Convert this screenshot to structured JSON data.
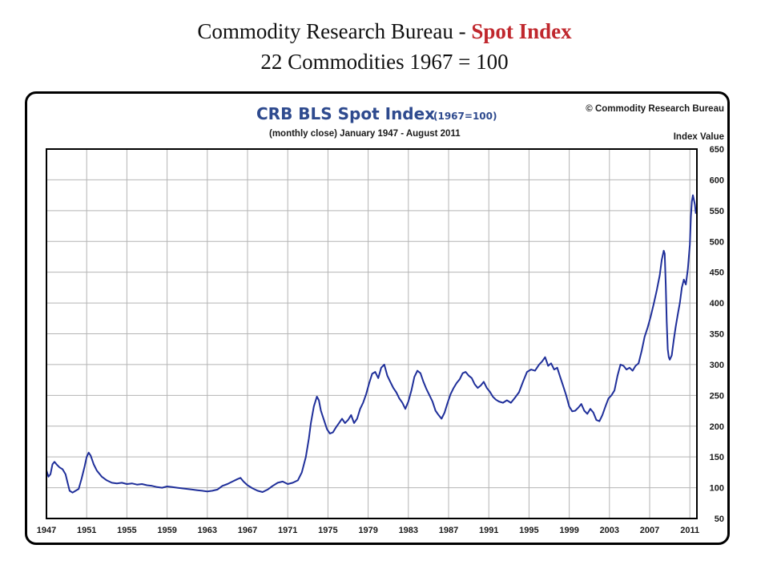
{
  "slide": {
    "title_prefix": "Commodity Research Bureau - ",
    "title_accent": "Spot Index",
    "subtitle": "22 Commodities 1967 = 100",
    "accent_color": "#c0272d"
  },
  "chart_data": {
    "type": "line",
    "title": "CRB BLS Spot Index",
    "title_suffix": "(1967=100)",
    "subtitle": "(monthly close) January 1947 - August 2011",
    "copyright": "© Commodity Research Bureau",
    "ylabel": "Index Value",
    "xlabel": "",
    "xlim": [
      1947,
      2011.7
    ],
    "ylim": [
      50,
      650
    ],
    "x_ticks": [
      "1947",
      "1951",
      "1955",
      "1959",
      "1963",
      "1967",
      "1971",
      "1975",
      "1979",
      "1983",
      "1987",
      "1991",
      "1995",
      "1999",
      "2003",
      "2007",
      "2011"
    ],
    "y_ticks": [
      650,
      600,
      550,
      500,
      450,
      400,
      350,
      300,
      250,
      200,
      150,
      100,
      50
    ],
    "grid": true,
    "line_color": "#1f2f9a",
    "title_color": "#2e4a8e",
    "series": [
      {
        "values": [
          [
            1947.0,
            128
          ],
          [
            1947.2,
            118
          ],
          [
            1947.4,
            122
          ],
          [
            1947.6,
            138
          ],
          [
            1947.8,
            142
          ],
          [
            1948.0,
            138
          ],
          [
            1948.3,
            133
          ],
          [
            1948.6,
            130
          ],
          [
            1948.9,
            122
          ],
          [
            1949.1,
            108
          ],
          [
            1949.3,
            95
          ],
          [
            1949.6,
            92
          ],
          [
            1949.9,
            95
          ],
          [
            1950.2,
            98
          ],
          [
            1950.5,
            115
          ],
          [
            1950.8,
            135
          ],
          [
            1951.0,
            150
          ],
          [
            1951.2,
            157
          ],
          [
            1951.4,
            152
          ],
          [
            1951.7,
            138
          ],
          [
            1952.0,
            128
          ],
          [
            1952.5,
            118
          ],
          [
            1953.0,
            112
          ],
          [
            1953.5,
            108
          ],
          [
            1954.0,
            107
          ],
          [
            1954.5,
            108
          ],
          [
            1955.0,
            106
          ],
          [
            1955.5,
            107
          ],
          [
            1956.0,
            105
          ],
          [
            1956.5,
            106
          ],
          [
            1957.0,
            104
          ],
          [
            1957.5,
            103
          ],
          [
            1958.0,
            101
          ],
          [
            1958.5,
            100
          ],
          [
            1959.0,
            102
          ],
          [
            1959.5,
            101
          ],
          [
            1960.0,
            100
          ],
          [
            1960.5,
            99
          ],
          [
            1961.0,
            98
          ],
          [
            1961.5,
            97
          ],
          [
            1962.0,
            96
          ],
          [
            1962.5,
            95
          ],
          [
            1963.0,
            94
          ],
          [
            1963.5,
            95
          ],
          [
            1964.0,
            97
          ],
          [
            1964.5,
            103
          ],
          [
            1965.0,
            106
          ],
          [
            1965.5,
            110
          ],
          [
            1966.0,
            114
          ],
          [
            1966.3,
            116
          ],
          [
            1966.6,
            110
          ],
          [
            1967.0,
            104
          ],
          [
            1967.5,
            99
          ],
          [
            1968.0,
            95
          ],
          [
            1968.5,
            93
          ],
          [
            1969.0,
            97
          ],
          [
            1969.5,
            103
          ],
          [
            1970.0,
            108
          ],
          [
            1970.5,
            110
          ],
          [
            1971.0,
            106
          ],
          [
            1971.5,
            108
          ],
          [
            1972.0,
            112
          ],
          [
            1972.4,
            125
          ],
          [
            1972.8,
            150
          ],
          [
            1973.1,
            180
          ],
          [
            1973.3,
            205
          ],
          [
            1973.6,
            232
          ],
          [
            1973.9,
            248
          ],
          [
            1974.1,
            242
          ],
          [
            1974.3,
            225
          ],
          [
            1974.6,
            210
          ],
          [
            1974.9,
            195
          ],
          [
            1975.2,
            188
          ],
          [
            1975.5,
            190
          ],
          [
            1975.8,
            198
          ],
          [
            1976.1,
            205
          ],
          [
            1976.4,
            212
          ],
          [
            1976.7,
            205
          ],
          [
            1977.0,
            210
          ],
          [
            1977.3,
            218
          ],
          [
            1977.6,
            205
          ],
          [
            1977.9,
            212
          ],
          [
            1978.2,
            228
          ],
          [
            1978.5,
            238
          ],
          [
            1978.8,
            252
          ],
          [
            1979.1,
            270
          ],
          [
            1979.4,
            285
          ],
          [
            1979.7,
            288
          ],
          [
            1980.0,
            278
          ],
          [
            1980.3,
            295
          ],
          [
            1980.6,
            300
          ],
          [
            1980.9,
            282
          ],
          [
            1981.2,
            272
          ],
          [
            1981.5,
            262
          ],
          [
            1981.8,
            255
          ],
          [
            1982.1,
            245
          ],
          [
            1982.4,
            238
          ],
          [
            1982.7,
            228
          ],
          [
            1983.0,
            240
          ],
          [
            1983.3,
            258
          ],
          [
            1983.6,
            280
          ],
          [
            1983.9,
            290
          ],
          [
            1984.2,
            286
          ],
          [
            1984.5,
            272
          ],
          [
            1984.8,
            260
          ],
          [
            1985.1,
            250
          ],
          [
            1985.4,
            240
          ],
          [
            1985.7,
            225
          ],
          [
            1986.0,
            218
          ],
          [
            1986.3,
            212
          ],
          [
            1986.6,
            222
          ],
          [
            1986.9,
            238
          ],
          [
            1987.2,
            252
          ],
          [
            1987.5,
            262
          ],
          [
            1987.8,
            270
          ],
          [
            1988.1,
            276
          ],
          [
            1988.4,
            286
          ],
          [
            1988.7,
            288
          ],
          [
            1989.0,
            282
          ],
          [
            1989.3,
            278
          ],
          [
            1989.6,
            268
          ],
          [
            1989.9,
            262
          ],
          [
            1990.2,
            266
          ],
          [
            1990.5,
            272
          ],
          [
            1990.8,
            262
          ],
          [
            1991.1,
            256
          ],
          [
            1991.4,
            248
          ],
          [
            1991.7,
            243
          ],
          [
            1992.0,
            240
          ],
          [
            1992.4,
            238
          ],
          [
            1992.8,
            242
          ],
          [
            1993.2,
            238
          ],
          [
            1993.6,
            246
          ],
          [
            1994.0,
            255
          ],
          [
            1994.4,
            272
          ],
          [
            1994.8,
            288
          ],
          [
            1995.2,
            292
          ],
          [
            1995.6,
            290
          ],
          [
            1996.0,
            300
          ],
          [
            1996.3,
            305
          ],
          [
            1996.6,
            312
          ],
          [
            1996.9,
            298
          ],
          [
            1997.2,
            302
          ],
          [
            1997.5,
            292
          ],
          [
            1997.8,
            295
          ],
          [
            1998.1,
            280
          ],
          [
            1998.4,
            265
          ],
          [
            1998.7,
            250
          ],
          [
            1999.0,
            232
          ],
          [
            1999.3,
            224
          ],
          [
            1999.6,
            225
          ],
          [
            1999.9,
            230
          ],
          [
            2000.2,
            236
          ],
          [
            2000.5,
            225
          ],
          [
            2000.8,
            220
          ],
          [
            2001.1,
            228
          ],
          [
            2001.4,
            222
          ],
          [
            2001.7,
            210
          ],
          [
            2002.0,
            208
          ],
          [
            2002.3,
            218
          ],
          [
            2002.6,
            232
          ],
          [
            2002.9,
            245
          ],
          [
            2003.2,
            250
          ],
          [
            2003.5,
            258
          ],
          [
            2003.8,
            282
          ],
          [
            2004.1,
            300
          ],
          [
            2004.4,
            298
          ],
          [
            2004.7,
            292
          ],
          [
            2005.0,
            295
          ],
          [
            2005.3,
            290
          ],
          [
            2005.6,
            298
          ],
          [
            2005.9,
            302
          ],
          [
            2006.2,
            322
          ],
          [
            2006.5,
            345
          ],
          [
            2006.8,
            360
          ],
          [
            2007.1,
            378
          ],
          [
            2007.4,
            398
          ],
          [
            2007.7,
            420
          ],
          [
            2008.0,
            445
          ],
          [
            2008.2,
            470
          ],
          [
            2008.4,
            485
          ],
          [
            2008.5,
            480
          ],
          [
            2008.6,
            430
          ],
          [
            2008.7,
            370
          ],
          [
            2008.8,
            325
          ],
          [
            2008.9,
            312
          ],
          [
            2009.0,
            308
          ],
          [
            2009.2,
            315
          ],
          [
            2009.4,
            340
          ],
          [
            2009.6,
            362
          ],
          [
            2009.8,
            382
          ],
          [
            2010.0,
            400
          ],
          [
            2010.2,
            425
          ],
          [
            2010.4,
            438
          ],
          [
            2010.6,
            430
          ],
          [
            2010.8,
            455
          ],
          [
            2011.0,
            495
          ],
          [
            2011.1,
            540
          ],
          [
            2011.2,
            565
          ],
          [
            2011.3,
            575
          ],
          [
            2011.4,
            568
          ],
          [
            2011.5,
            560
          ],
          [
            2011.6,
            545
          ]
        ]
      }
    ]
  }
}
